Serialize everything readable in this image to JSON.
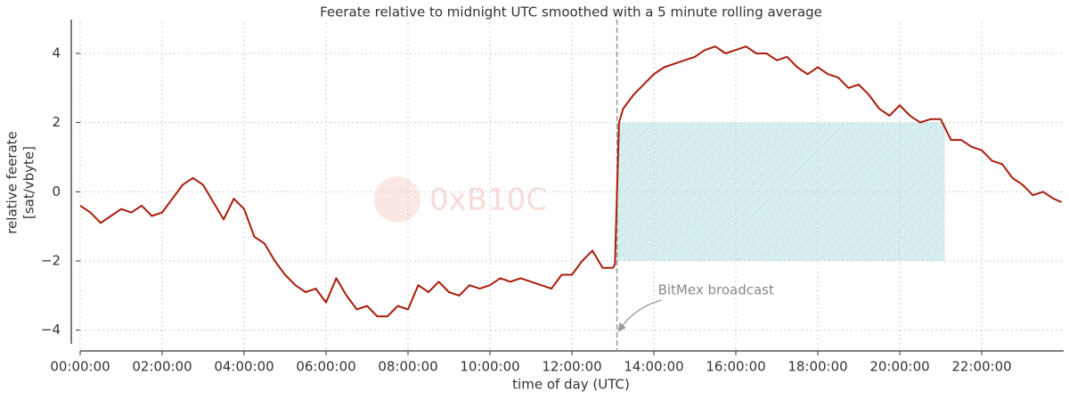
{
  "chart_data": {
    "type": "line",
    "title": "Feerate relative to midnight UTC smoothed with a 5 minute rolling average",
    "x_label": "time of day (UTC)",
    "y_label": [
      "relative feerate",
      "[sat/vbyte]"
    ],
    "watermark": "0xB10C",
    "annotation": {
      "text": "BitMex broadcast",
      "x": 13.1
    },
    "shaded_region": {
      "x": [
        13.1,
        21.1
      ],
      "y": [
        -2,
        2
      ],
      "color": "#d6eeee"
    },
    "grid": true,
    "xlim": [
      0,
      24
    ],
    "ylim": [
      -4.6,
      4.9
    ],
    "xticks": [
      {
        "value": 0,
        "label": "00:00:00"
      },
      {
        "value": 2,
        "label": "02:00:00"
      },
      {
        "value": 4,
        "label": "04:00:00"
      },
      {
        "value": 6,
        "label": "06:00:00"
      },
      {
        "value": 8,
        "label": "08:00:00"
      },
      {
        "value": 10,
        "label": "10:00:00"
      },
      {
        "value": 12,
        "label": "12:00:00"
      },
      {
        "value": 14,
        "label": "14:00:00"
      },
      {
        "value": 16,
        "label": "16:00:00"
      },
      {
        "value": 18,
        "label": "18:00:00"
      },
      {
        "value": 20,
        "label": "20:00:00"
      },
      {
        "value": 22,
        "label": "22:00:00"
      }
    ],
    "yticks": [
      {
        "value": -4,
        "label": "−4"
      },
      {
        "value": -2,
        "label": "−2"
      },
      0,
      2,
      4
    ],
    "x": [
      0,
      0.25,
      0.5,
      0.75,
      1,
      1.25,
      1.5,
      1.75,
      2,
      2.25,
      2.5,
      2.75,
      3,
      3.25,
      3.5,
      3.75,
      4,
      4.25,
      4.5,
      4.75,
      5,
      5.25,
      5.5,
      5.75,
      6,
      6.25,
      6.5,
      6.75,
      7,
      7.25,
      7.5,
      7.75,
      8,
      8.25,
      8.5,
      8.75,
      9,
      9.25,
      9.5,
      9.75,
      10,
      10.25,
      10.5,
      10.75,
      11,
      11.25,
      11.5,
      11.75,
      12,
      12.25,
      12.5,
      12.75,
      13,
      13.05,
      13.15,
      13.25,
      13.5,
      13.75,
      14,
      14.25,
      14.5,
      14.75,
      15,
      15.25,
      15.5,
      15.75,
      16,
      16.25,
      16.5,
      16.75,
      17,
      17.25,
      17.5,
      17.75,
      18,
      18.25,
      18.5,
      18.75,
      19,
      19.25,
      19.5,
      19.75,
      20,
      20.25,
      20.5,
      20.75,
      21,
      21.25,
      21.5,
      21.75,
      22,
      22.25,
      22.5,
      22.75,
      23,
      23.25,
      23.5,
      23.75,
      23.95
    ],
    "series": [
      {
        "name": "feerate",
        "color": "#a81c0c",
        "values": [
          -0.4,
          -0.6,
          -0.9,
          -0.7,
          -0.5,
          -0.6,
          -0.4,
          -0.7,
          -0.6,
          -0.2,
          0.2,
          0.4,
          0.2,
          -0.3,
          -0.8,
          -0.2,
          -0.5,
          -1.3,
          -1.5,
          -2.0,
          -2.4,
          -2.7,
          -2.9,
          -2.8,
          -3.2,
          -2.5,
          -3.0,
          -3.4,
          -3.3,
          -3.6,
          -3.6,
          -3.3,
          -3.4,
          -2.7,
          -2.9,
          -2.6,
          -2.9,
          -3.0,
          -2.7,
          -2.8,
          -2.7,
          -2.5,
          -2.6,
          -2.5,
          -2.6,
          -2.7,
          -2.8,
          -2.4,
          -2.4,
          -2.0,
          -1.7,
          -2.2,
          -2.2,
          -2.1,
          2.0,
          2.4,
          2.8,
          3.1,
          3.4,
          3.6,
          3.7,
          3.8,
          3.9,
          4.1,
          4.2,
          4.0,
          4.1,
          4.2,
          4.0,
          4.0,
          3.8,
          3.9,
          3.6,
          3.4,
          3.6,
          3.4,
          3.3,
          3.0,
          3.1,
          2.8,
          2.4,
          2.2,
          2.5,
          2.2,
          2.0,
          2.1,
          2.1,
          1.5,
          1.5,
          1.3,
          1.2,
          0.9,
          0.8,
          0.4,
          0.2,
          -0.1,
          0.0,
          -0.2,
          -0.3
        ]
      }
    ]
  }
}
